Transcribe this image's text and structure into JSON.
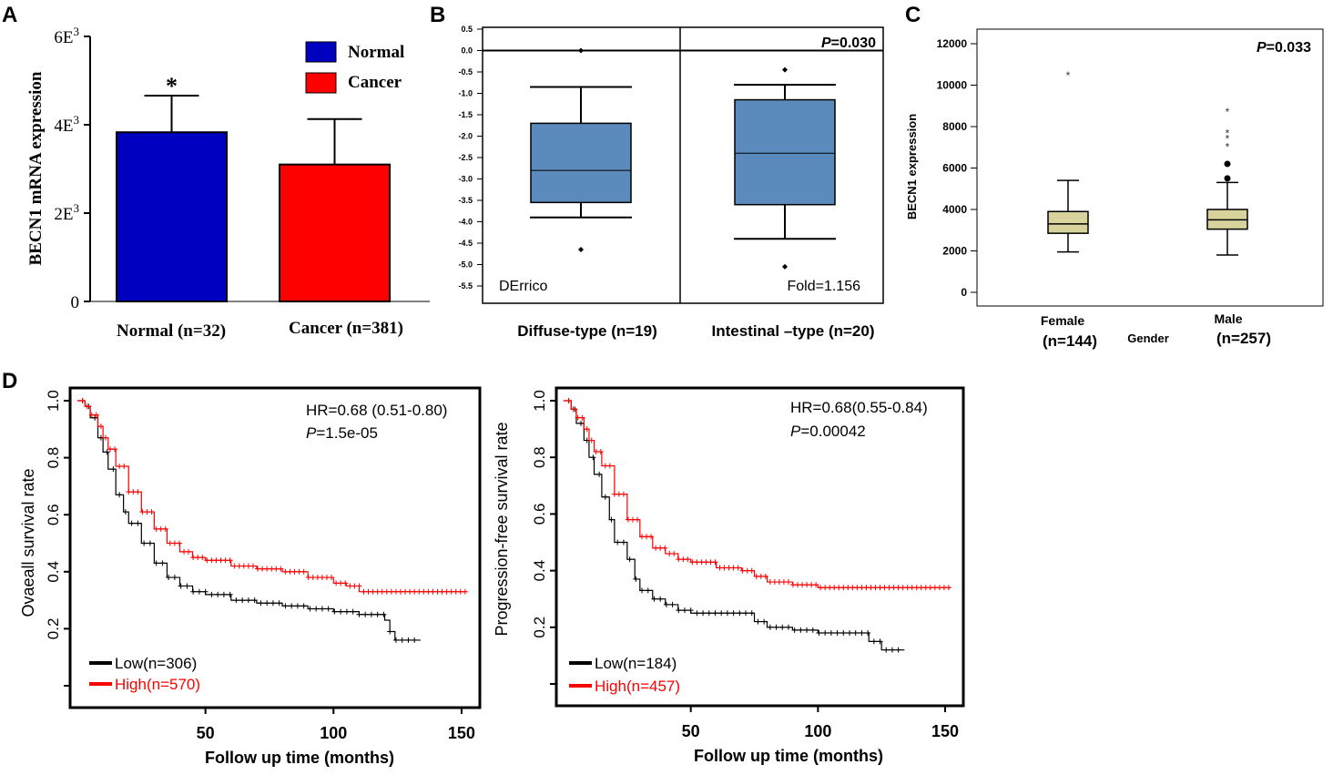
{
  "panel_labels": [
    "A",
    "B",
    "C",
    "D"
  ],
  "colors": {
    "normal": "#0000c0",
    "cancer": "#ff0000",
    "box_blue": "#5b8bbd",
    "box_tan": "#d8d39c",
    "km_low": "#000000",
    "km_high": "#ff0000"
  },
  "chart_data": [
    {
      "id": "A",
      "type": "bar",
      "ylabel": "BECN1 mRNA expression",
      "ytick_labels": [
        "0",
        "2E3",
        "4E3",
        "6E3"
      ],
      "ylim": [
        0,
        6000
      ],
      "categories": [
        "Normal (n=32)",
        "Cancer (n=381)"
      ],
      "series": [
        {
          "name": "Normal",
          "values": [
            3830,
            null
          ],
          "errors": [
            830,
            null
          ]
        },
        {
          "name": "Cancer",
          "values": [
            null,
            3100
          ],
          "errors": [
            null,
            1030
          ]
        }
      ],
      "legend": [
        "Normal",
        "Cancer"
      ],
      "annotation": "*"
    },
    {
      "id": "B",
      "type": "box",
      "ytick_labels": [
        "0.5",
        "0.0",
        "-0.5",
        "-1.0",
        "-1.5",
        "-2.0",
        "-2.5",
        "-3.0",
        "-3.5",
        "-4.0",
        "-4.5",
        "-5.0",
        "-5.5"
      ],
      "ylim": [
        -5.8,
        0.55
      ],
      "categories": [
        "Diffuse-type (n=19)",
        "Intestinal –type (n=20)"
      ],
      "boxes": [
        {
          "whisker_low": -3.9,
          "q1": -3.55,
          "median": -2.8,
          "q3": -1.7,
          "whisker_high": -0.85,
          "outliers": [
            0.0,
            -4.65
          ]
        },
        {
          "whisker_low": -4.4,
          "q1": -3.6,
          "median": -2.4,
          "q3": -1.15,
          "whisker_high": -0.8,
          "outliers": [
            -0.45,
            -5.05
          ]
        }
      ],
      "annotations": {
        "dataset": "DErrico",
        "fold": "Fold=1.156",
        "p_prefix": "P",
        "p_value": "=0.030"
      }
    },
    {
      "id": "C",
      "type": "box",
      "ylabel": "BECN1 expression",
      "xlabel": "Gender",
      "ytick_labels": [
        "0",
        "2000",
        "4000",
        "6000",
        "8000",
        "10000",
        "12000"
      ],
      "ylim": [
        -500,
        12500
      ],
      "categories": [
        "Female",
        "Male"
      ],
      "category_counts": [
        "(n=144)",
        "(n=257)"
      ],
      "boxes": [
        {
          "whisker_low": 1950,
          "q1": 2850,
          "median": 3300,
          "q3": 3900,
          "whisker_high": 5400,
          "outliers": [
            10550
          ]
        },
        {
          "whisker_low": 1800,
          "q1": 3050,
          "median": 3500,
          "q3": 4000,
          "whisker_high": 5300,
          "outliers": [
            5500,
            6200,
            7100,
            7500,
            7750,
            8800
          ]
        }
      ],
      "annotations": {
        "p_prefix": "P",
        "p_value": "=0.033"
      }
    },
    {
      "id": "D1",
      "type": "line",
      "ylabel": "Ovaeall survival rate",
      "xlabel": "Follow up time (months)",
      "xtick_labels": [
        "50",
        "100",
        "150"
      ],
      "ytick_labels": [
        "0.2",
        "0.4",
        "0.6",
        "0.8",
        "1.0"
      ],
      "xlim": [
        0,
        155
      ],
      "ylim": [
        0.0,
        1.0
      ],
      "hr": "HR=0.68 (0.51-0.80)",
      "p_prefix": "P",
      "p_value": "=1.5e-05",
      "series": [
        {
          "name": "Low(n=306)",
          "x": [
            0,
            3,
            5,
            8,
            10,
            12,
            15,
            18,
            20,
            25,
            30,
            35,
            40,
            45,
            50,
            60,
            70,
            80,
            90,
            100,
            110,
            120,
            122,
            124,
            134
          ],
          "y": [
            1.0,
            0.98,
            0.94,
            0.87,
            0.82,
            0.76,
            0.67,
            0.61,
            0.57,
            0.5,
            0.43,
            0.38,
            0.35,
            0.33,
            0.32,
            0.3,
            0.29,
            0.28,
            0.27,
            0.26,
            0.25,
            0.23,
            0.19,
            0.16,
            0.16
          ]
        },
        {
          "name": "High(n=570)",
          "x": [
            0,
            3,
            5,
            8,
            10,
            12,
            15,
            20,
            25,
            30,
            35,
            40,
            45,
            50,
            60,
            70,
            80,
            90,
            100,
            105,
            110,
            120,
            130,
            140,
            152
          ],
          "y": [
            1.0,
            0.98,
            0.95,
            0.91,
            0.87,
            0.83,
            0.77,
            0.68,
            0.61,
            0.55,
            0.5,
            0.47,
            0.45,
            0.44,
            0.42,
            0.41,
            0.4,
            0.38,
            0.36,
            0.35,
            0.33,
            0.33,
            0.33,
            0.33,
            0.33
          ]
        }
      ]
    },
    {
      "id": "D2",
      "type": "line",
      "ylabel": "Progression-free survival rate",
      "xlabel": "Follow up time (months)",
      "xtick_labels": [
        "50",
        "100",
        "150"
      ],
      "ytick_labels": [
        "0.2",
        "0.4",
        "0.6",
        "0.8",
        "1.0"
      ],
      "xlim": [
        0,
        155
      ],
      "ylim": [
        0.0,
        1.0
      ],
      "hr": "HR=0.68(0.55-0.84)",
      "p_prefix": "P",
      "p_value": "=0.00042",
      "series": [
        {
          "name": "Low(n=184)",
          "x": [
            0,
            3,
            5,
            8,
            10,
            12,
            15,
            18,
            20,
            25,
            28,
            30,
            35,
            40,
            45,
            50,
            60,
            70,
            75,
            80,
            90,
            100,
            110,
            120,
            125,
            127,
            134
          ],
          "y": [
            1.0,
            0.97,
            0.92,
            0.86,
            0.8,
            0.74,
            0.66,
            0.58,
            0.5,
            0.44,
            0.37,
            0.33,
            0.3,
            0.28,
            0.26,
            0.25,
            0.25,
            0.25,
            0.22,
            0.2,
            0.19,
            0.18,
            0.18,
            0.15,
            0.12,
            0.12,
            0.12
          ]
        },
        {
          "name": "High(n=457)",
          "x": [
            0,
            3,
            5,
            8,
            10,
            12,
            15,
            20,
            25,
            30,
            35,
            40,
            45,
            50,
            60,
            70,
            75,
            80,
            90,
            100,
            110,
            120,
            130,
            140,
            152
          ],
          "y": [
            1.0,
            0.97,
            0.94,
            0.9,
            0.86,
            0.82,
            0.77,
            0.67,
            0.58,
            0.52,
            0.48,
            0.46,
            0.44,
            0.43,
            0.41,
            0.4,
            0.38,
            0.36,
            0.35,
            0.34,
            0.34,
            0.34,
            0.34,
            0.34,
            0.34
          ]
        }
      ]
    }
  ]
}
